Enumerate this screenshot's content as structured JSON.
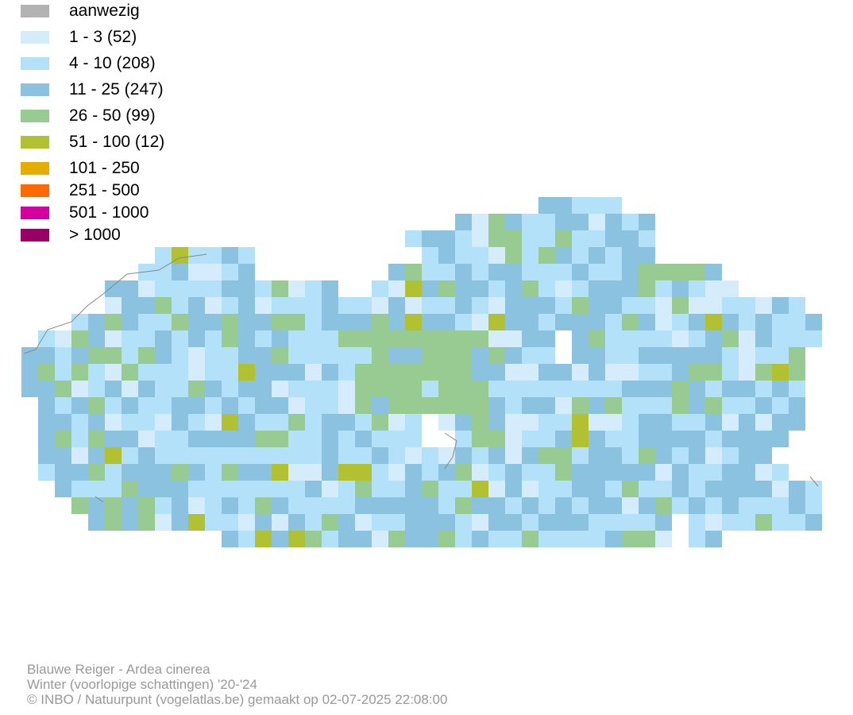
{
  "legend": [
    {
      "label": "aanwezig",
      "color": "#b3b3b3"
    },
    {
      "label": "1 - 3 (52)",
      "color": "#d4ecfb"
    },
    {
      "label": "4 - 10 (208)",
      "color": "#b2e1f9"
    },
    {
      "label": "11 - 25 (247)",
      "color": "#8ac2e0"
    },
    {
      "label": "26 - 50 (99)",
      "color": "#97cb92"
    },
    {
      "label": "51 - 100 (12)",
      "color": "#b1c132"
    },
    {
      "label": "101 - 250",
      "color": "#e4ad00"
    },
    {
      "label": "251 - 500",
      "color": "#ff6a00"
    },
    {
      "label": "501 - 1000",
      "color": "#d4009d"
    },
    {
      "label": "> 1000",
      "color": "#990066"
    }
  ],
  "footer": {
    "species": "Blauwe Reiger - Ardea cinerea",
    "period": "Winter (voorlopige schattingen) '20-'24",
    "credit": "© INBO / Natuurpunt (vogelatlas.be) gemaakt op 02-07-2025 22:08:00"
  }
}
